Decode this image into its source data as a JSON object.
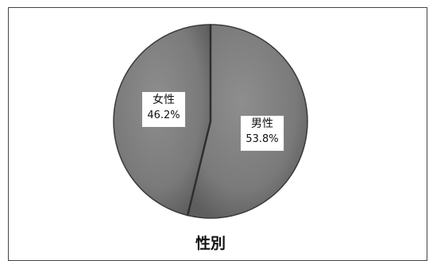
{
  "chart_data": {
    "type": "pie",
    "title": "性別",
    "categories": [
      "男性",
      "女性"
    ],
    "values": [
      53.8,
      46.2
    ],
    "value_labels": [
      "53.8%",
      "46.2%"
    ],
    "colors": [
      "#7f7f7f",
      "#7f7f7f"
    ],
    "edge_color": "#3a3a3a"
  }
}
